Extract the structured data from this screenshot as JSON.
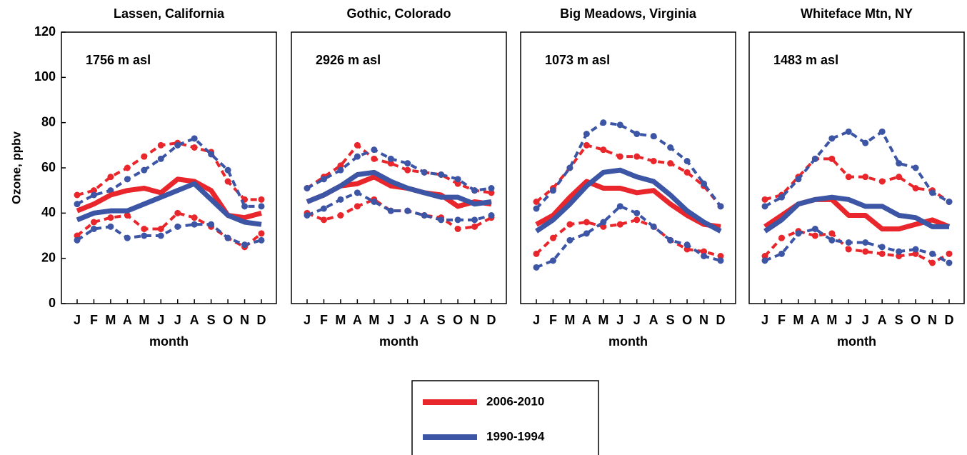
{
  "chart_data": [
    {
      "type": "line",
      "title": "Lassen, California",
      "annotation": "1756 m asl",
      "xlabel": "month",
      "ylabel": "Ozone, ppbv",
      "categories": [
        "J",
        "F",
        "M",
        "A",
        "M",
        "J",
        "J",
        "A",
        "S",
        "O",
        "N",
        "D"
      ],
      "ylim": [
        0,
        120
      ],
      "yticks": [
        0,
        20,
        40,
        60,
        80,
        100,
        120
      ],
      "series": [
        {
          "name": "2006-2010",
          "color": "#e8262b",
          "values": [
            41,
            44,
            48,
            50,
            51,
            49,
            55,
            54,
            50,
            39,
            38,
            40
          ],
          "upper": [
            48,
            50,
            56,
            60,
            65,
            70,
            71,
            69,
            67,
            54,
            46,
            46
          ],
          "lower": [
            30,
            36,
            38,
            39,
            33,
            33,
            40,
            38,
            34,
            29,
            25,
            31
          ]
        },
        {
          "name": "1990-1994",
          "color": "#3d55a5",
          "values": [
            37,
            40,
            41,
            41,
            44,
            47,
            50,
            53,
            46,
            39,
            36,
            35
          ],
          "upper": [
            44,
            48,
            50,
            55,
            59,
            64,
            70,
            73,
            66,
            59,
            43,
            43
          ],
          "lower": [
            28,
            33,
            34,
            29,
            30,
            30,
            34,
            35,
            35,
            29,
            26,
            28
          ]
        }
      ]
    },
    {
      "type": "line",
      "title": "Gothic, Colorado",
      "annotation": "2926 m asl",
      "xlabel": "month",
      "categories": [
        "J",
        "F",
        "M",
        "A",
        "M",
        "J",
        "J",
        "A",
        "S",
        "O",
        "N",
        "D"
      ],
      "ylim": [
        0,
        120
      ],
      "series": [
        {
          "color": "#e8262b",
          "values": [
            45,
            48,
            52,
            53,
            56,
            52,
            51,
            49,
            48,
            43,
            45,
            44
          ],
          "upper": [
            51,
            56,
            61,
            70,
            64,
            62,
            59,
            58,
            57,
            53,
            50,
            49
          ],
          "lower": [
            40,
            37,
            39,
            43,
            46,
            41,
            41,
            39,
            38,
            33,
            34,
            38
          ]
        },
        {
          "color": "#3d55a5",
          "values": [
            45,
            48,
            52,
            57,
            58,
            54,
            51,
            49,
            47,
            47,
            44,
            45
          ],
          "upper": [
            51,
            55,
            59,
            65,
            68,
            64,
            62,
            58,
            57,
            55,
            50,
            51
          ],
          "lower": [
            39,
            42,
            46,
            49,
            45,
            41,
            41,
            39,
            37,
            37,
            37,
            39
          ]
        }
      ]
    },
    {
      "type": "line",
      "title": "Big Meadows, Virginia",
      "annotation": "1073 m asl",
      "xlabel": "month",
      "categories": [
        "J",
        "F",
        "M",
        "A",
        "M",
        "J",
        "J",
        "A",
        "S",
        "O",
        "N",
        "D"
      ],
      "ylim": [
        0,
        120
      ],
      "series": [
        {
          "color": "#e8262b",
          "values": [
            35,
            39,
            47,
            54,
            51,
            51,
            49,
            50,
            44,
            39,
            35,
            34
          ],
          "upper": [
            45,
            51,
            60,
            70,
            68,
            65,
            65,
            63,
            62,
            58,
            52,
            43
          ],
          "lower": [
            22,
            29,
            35,
            36,
            34,
            35,
            37,
            34,
            28,
            24,
            23,
            21
          ]
        },
        {
          "color": "#3d55a5",
          "values": [
            32,
            37,
            44,
            52,
            58,
            59,
            56,
            54,
            48,
            41,
            36,
            32
          ],
          "upper": [
            42,
            50,
            60,
            75,
            80,
            79,
            75,
            74,
            69,
            63,
            53,
            43
          ],
          "lower": [
            16,
            19,
            28,
            31,
            36,
            43,
            40,
            34,
            28,
            26,
            21,
            19
          ]
        }
      ]
    },
    {
      "type": "line",
      "title": "Whiteface Mtn, NY",
      "annotation": "1483 m asl",
      "xlabel": "month",
      "categories": [
        "J",
        "F",
        "M",
        "A",
        "M",
        "J",
        "J",
        "A",
        "S",
        "O",
        "N",
        "D"
      ],
      "ylim": [
        0,
        120
      ],
      "series": [
        {
          "color": "#e8262b",
          "values": [
            34,
            39,
            44,
            46,
            46,
            39,
            39,
            33,
            33,
            35,
            37,
            34
          ],
          "upper": [
            46,
            48,
            56,
            64,
            64,
            56,
            56,
            54,
            56,
            51,
            50,
            45
          ],
          "lower": [
            21,
            29,
            32,
            30,
            31,
            24,
            23,
            22,
            21,
            22,
            18,
            22
          ]
        },
        {
          "color": "#3d55a5",
          "values": [
            32,
            37,
            44,
            46,
            47,
            46,
            43,
            43,
            39,
            38,
            34,
            34
          ],
          "upper": [
            43,
            47,
            55,
            64,
            73,
            76,
            71,
            76,
            62,
            60,
            49,
            45
          ],
          "lower": [
            19,
            22,
            31,
            33,
            28,
            27,
            27,
            25,
            23,
            24,
            22,
            18
          ]
        }
      ]
    }
  ]
}
